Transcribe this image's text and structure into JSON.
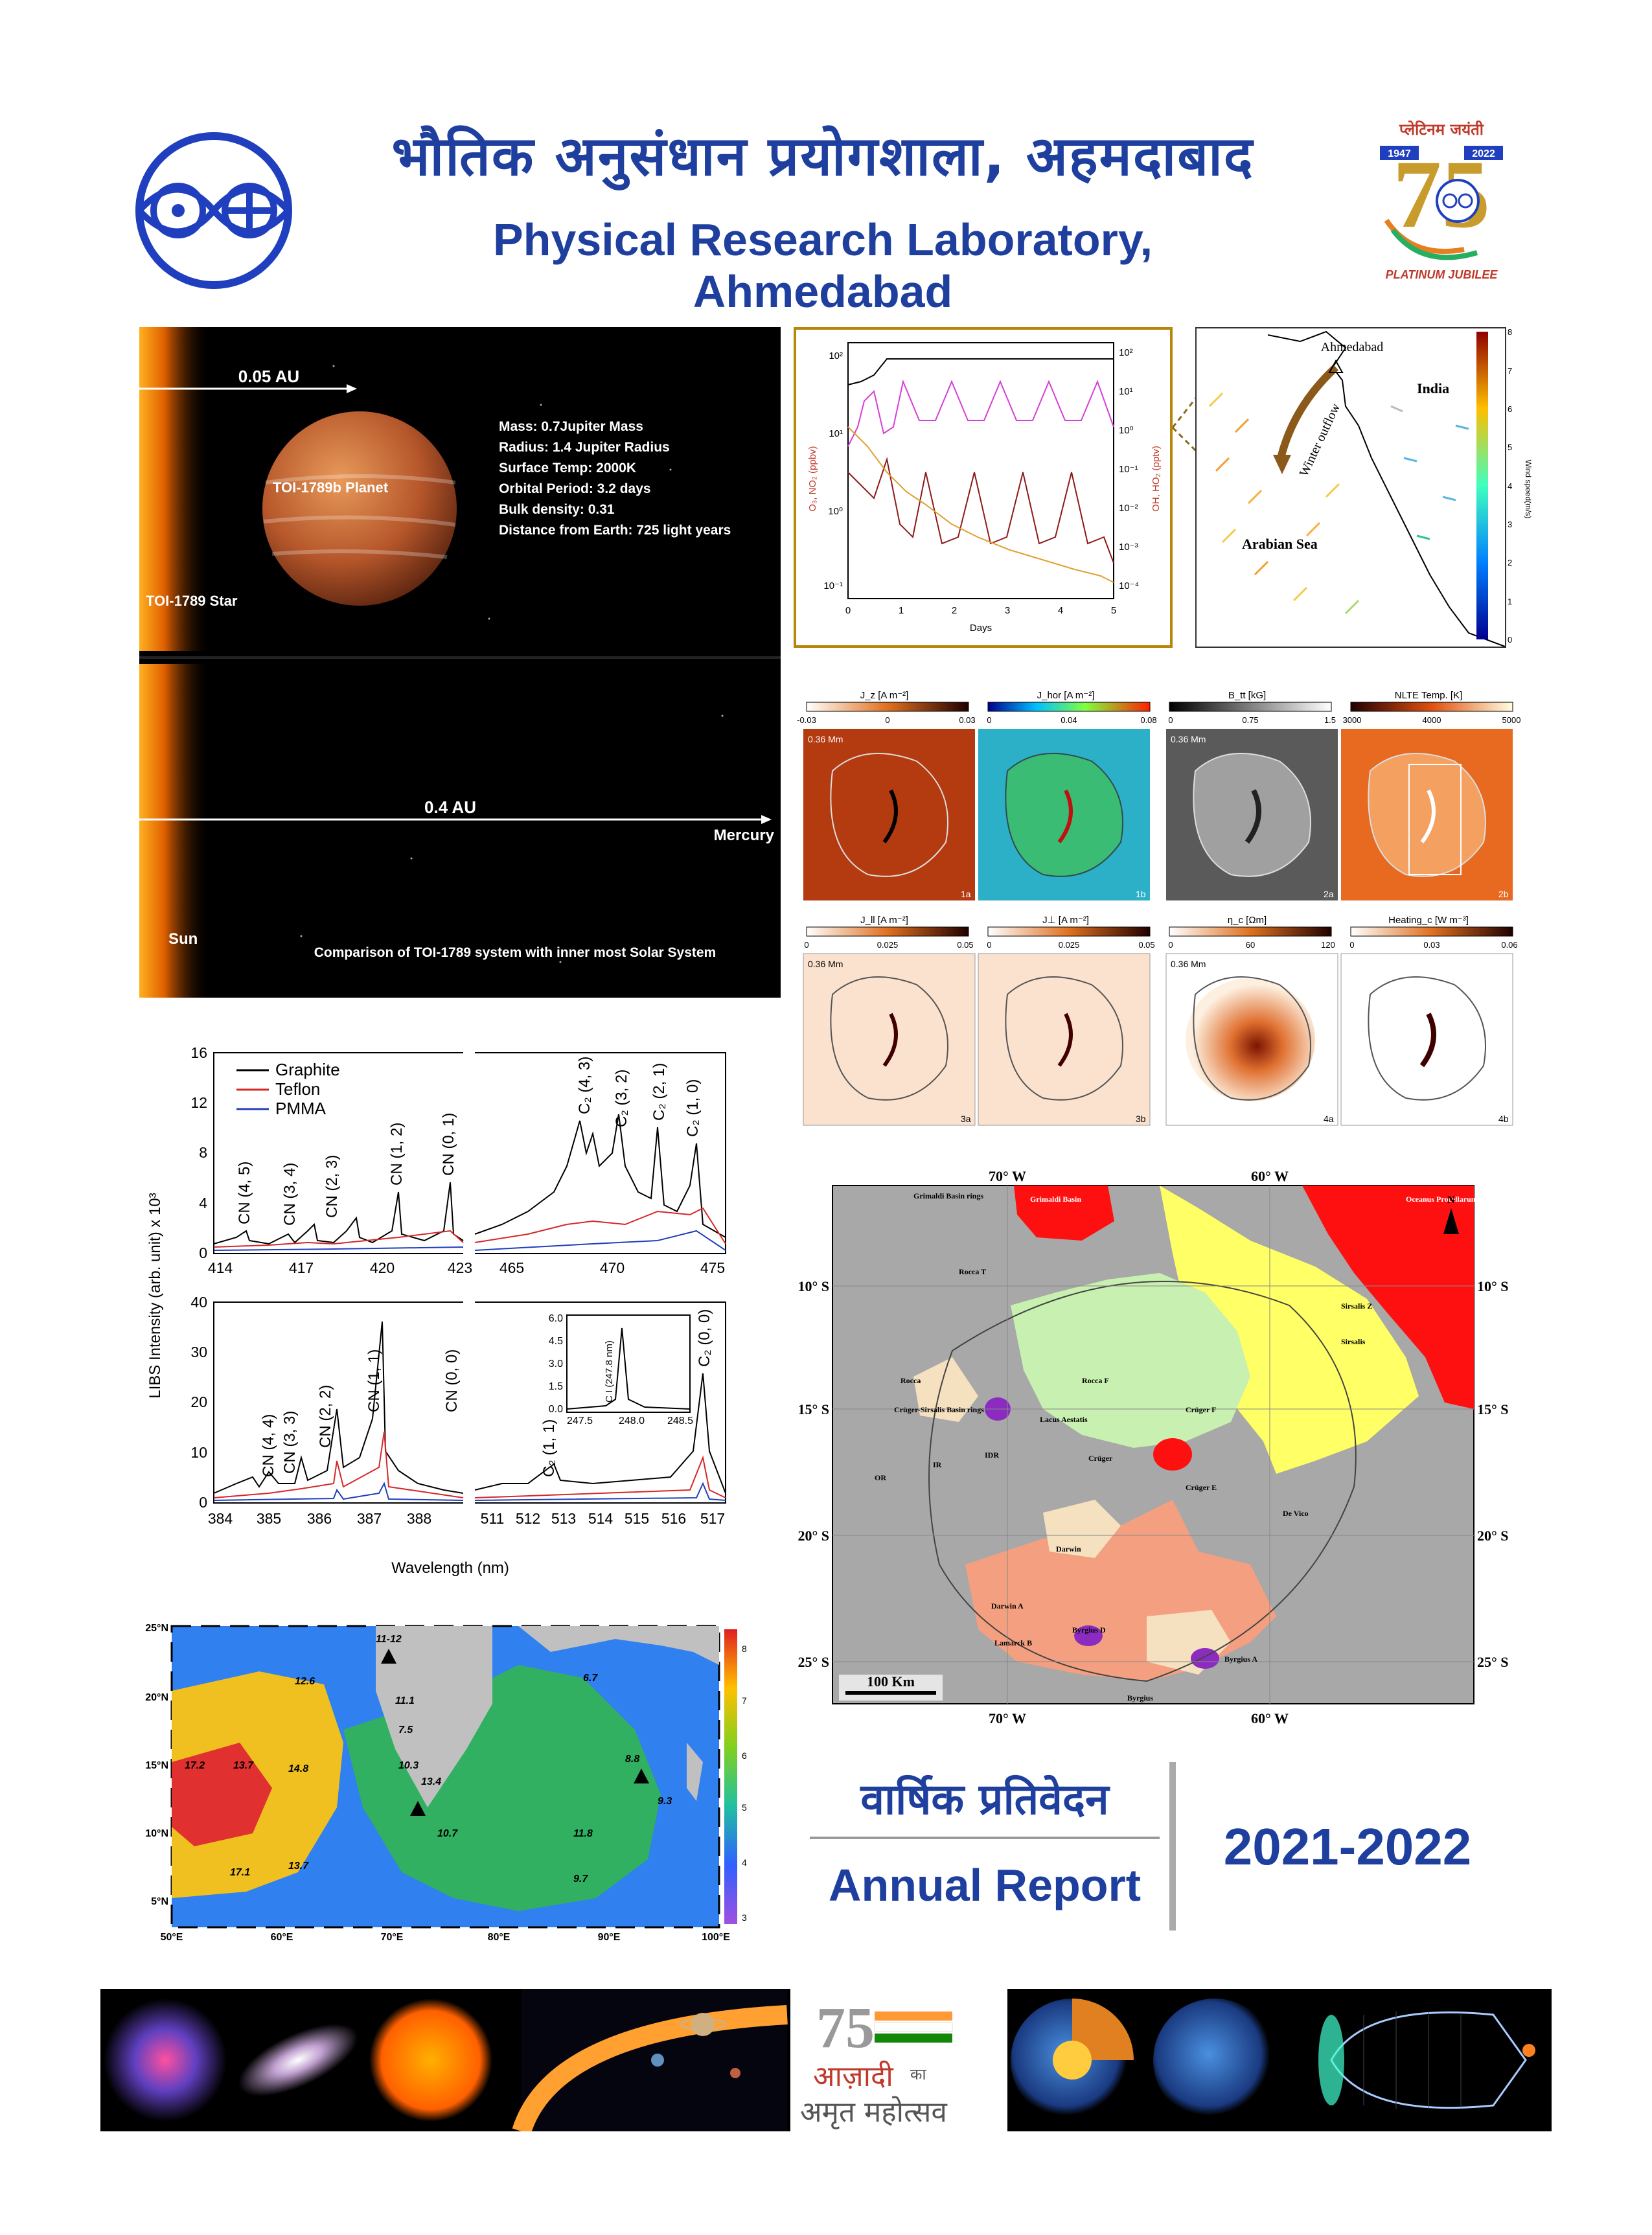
{
  "header": {
    "title_hindi": "भौतिक अनुसंधान प्रयोगशाला, अहमदाबाद",
    "title_english": "Physical Research Laboratory, Ahmedabad",
    "jubilee_hindi": "प्लेटिनम जयंती",
    "jubilee_start": "1947",
    "jubilee_end": "2022",
    "jubilee_english": "PLATINUM JUBILEE"
  },
  "exoplanet": {
    "scale_top": "0.05 AU",
    "planet_label": "TOI-1789b Planet",
    "star_label": "TOI-1789 Star",
    "facts": [
      "Mass: 0.7Jupiter Mass",
      "Radius: 1.4 Jupiter Radius",
      "Surface Temp: 2000K",
      "Orbital Period: 3.2 days",
      "Bulk density: 0.31",
      "Distance from Earth: 725 light years"
    ],
    "scale_bottom": "0.4 AU",
    "mercury_label": "Mercury",
    "sun_label": "Sun",
    "caption": "Comparison of TOI-1789 system with inner most Solar System"
  },
  "chem_plot": {
    "x_ticks": [
      "0",
      "1",
      "2",
      "3",
      "4",
      "5"
    ],
    "xlabel": "Days",
    "left_ticks": [
      "10²",
      "10¹",
      "10⁰",
      "10⁻¹"
    ],
    "right_ticks": [
      "10²",
      "10¹",
      "10⁰",
      "10⁻¹",
      "10⁻²",
      "10⁻³",
      "10⁻⁴"
    ],
    "left_label": "O₃, NO₂ (ppbv)",
    "right_label": "OH, HO₂ (pptv)"
  },
  "wind_map": {
    "city": "Ahmedabad",
    "country": "India",
    "sea": "Arabian Sea",
    "flow": "Winter outflow",
    "colorbar_ticks": [
      "0",
      "1",
      "2",
      "3",
      "4",
      "5",
      "6",
      "7",
      "8"
    ],
    "colorbar_label": "Wind speed(m/s)"
  },
  "solar_maps": {
    "row1_titles": [
      "J_z [A m⁻²]",
      "J_hor [A m⁻²]",
      "B_tt [kG]",
      "NLTE Temp. [K]"
    ],
    "row1_ticks": [
      [
        "-0.03",
        "0",
        "0.03"
      ],
      [
        "0",
        "0.04",
        "0.08"
      ],
      [
        "0",
        "0.75",
        "1.5"
      ],
      [
        "3000",
        "4000",
        "5000"
      ]
    ],
    "row1_scale": [
      "0.36 Mm",
      "",
      "0.36 Mm",
      ""
    ],
    "row1_tags": [
      "1a",
      "1b",
      "2a",
      "2b"
    ],
    "row2_titles": [
      "J_ll [A m⁻²]",
      "J⊥ [A m⁻²]",
      "η_c [Ωm]",
      "Heating_c [W m⁻³]"
    ],
    "row2_ticks": [
      [
        "0",
        "0.025",
        "0.05"
      ],
      [
        "0",
        "0.025",
        "0.05"
      ],
      [
        "0",
        "60",
        "120"
      ],
      [
        "0",
        "0.03",
        "0.06"
      ]
    ],
    "row2_scale": [
      "0.36 Mm",
      "",
      "0.36 Mm",
      ""
    ],
    "row2_tags": [
      "3a",
      "3b",
      "4a",
      "4b"
    ]
  },
  "libs_chart": {
    "ylabel": "LIBS Intensity (arb. unit) x 10³",
    "xlabel": "Wavelength (nm)",
    "legend": [
      "Graphite",
      "Teflon",
      "PMMA"
    ],
    "colors": {
      "Graphite": "#000000",
      "Teflon": "#d62728",
      "PMMA": "#1f3fbf"
    },
    "top_y_ticks": [
      "0",
      "4",
      "8",
      "12",
      "16"
    ],
    "top_x_ticks": [
      "414",
      "417",
      "420",
      "423",
      "465",
      "470",
      "475"
    ],
    "top_peaks": [
      "CN (4, 5)",
      "CN (3, 4)",
      "CN (2, 3)",
      "CN (1, 2)",
      "CN (0, 1)",
      "C₂ (4, 3)",
      "C₂ (3, 2)",
      "C₂ (2, 1)",
      "C₂ (1, 0)"
    ],
    "bottom_y_ticks": [
      "0",
      "10",
      "20",
      "30",
      "40"
    ],
    "bottom_x_ticks": [
      "384",
      "385",
      "386",
      "387",
      "388",
      "511",
      "512",
      "513",
      "514",
      "515",
      "516",
      "517"
    ],
    "bottom_peaks": [
      "CN (4, 4)",
      "CN (3, 3)",
      "CN (2, 2)",
      "CN (1, 1)",
      "CN (0, 0)",
      "C₂ (1, 1)",
      "C₂ (0, 0)"
    ],
    "inset_y_ticks": [
      "0.0",
      "1.5",
      "3.0",
      "4.5",
      "6.0"
    ],
    "inset_x_ticks": [
      "247.5",
      "248.0",
      "248.5"
    ],
    "inset_label": "C I (247.8 nm)"
  },
  "lunar_map": {
    "top_lon": [
      "70° W",
      "60° W"
    ],
    "bottom_lon": [
      "70° W",
      "60° W"
    ],
    "lat": [
      "10° S",
      "15° S",
      "20° S",
      "25° S"
    ],
    "labels": [
      "Grimaldi Basin rings",
      "Grimaldi Basin",
      "Oceanus Procellarum",
      "Rocca T",
      "Sirsalis Z",
      "Sirsalis",
      "Rocca",
      "Rocca F",
      "Crüger-Sirsalis Basin rings",
      "Lacus Aestatis",
      "Crüger",
      "Crüger F",
      "Crüger E",
      "OR",
      "IR",
      "IDR",
      "De Vico",
      "Darwin",
      "Darwin A",
      "Lamarck B",
      "Byrgius D",
      "Byrgius A",
      "Byrgius"
    ],
    "scale": "100 Km",
    "north": "N"
  },
  "sst_map": {
    "lat_ticks": [
      "25°N",
      "20°N",
      "15°N",
      "10°N",
      "5°N"
    ],
    "lon_ticks": [
      "50°E",
      "60°E",
      "70°E",
      "80°E",
      "90°E",
      "100°E"
    ],
    "cb_ticks": [
      "3",
      "4",
      "5",
      "6",
      "7",
      "8"
    ],
    "values": [
      "11-12",
      "12.6",
      "11.1",
      "7.5",
      "10.3",
      "13.4",
      "14.8",
      "13.7",
      "17.2",
      "17.1",
      "13.7",
      "10.7",
      "6.7",
      "8.8",
      "9.3",
      "11.8",
      "9.7"
    ]
  },
  "report": {
    "hindi": "वार्षिक प्रतिवेदन",
    "english": "Annual Report",
    "year": "2021-2022"
  },
  "azadi": {
    "num": "75",
    "line1": "आज़ादी",
    "ka": "का",
    "line2": "अमृत महोत्सव"
  }
}
